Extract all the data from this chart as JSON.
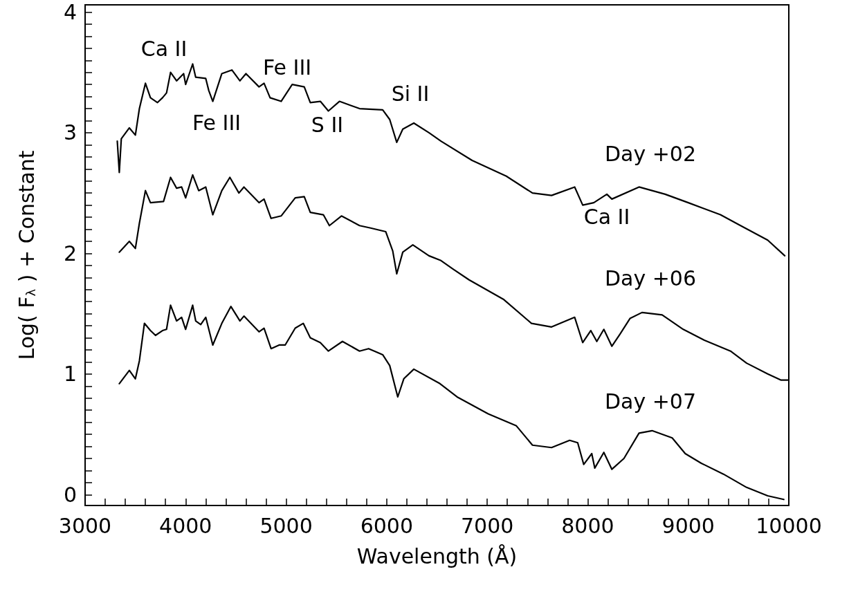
{
  "chart_data": {
    "type": "line",
    "xlabel": "Wavelength (Å)",
    "ylabel": "Log( F$_{λ}$ ) + Constant",
    "xlim": [
      3000,
      10000
    ],
    "ylim": [
      -0.09,
      4.06
    ],
    "xticks": [
      3000,
      4000,
      5000,
      6000,
      7000,
      8000,
      9000,
      10000
    ],
    "yticks": [
      0,
      1,
      2,
      3,
      4
    ],
    "line_style": "solid",
    "series": [
      {
        "color": "#000000",
        "x": [
          3320,
          3340,
          3360,
          3440,
          3500,
          3540,
          3600,
          3650,
          3720,
          3770,
          3810,
          3850,
          3910,
          3980,
          4000,
          4070,
          4100,
          4200,
          4230,
          4270,
          4360,
          4460,
          4540,
          4600,
          4730,
          4780,
          4840,
          4950,
          5060,
          5180,
          5240,
          5340,
          5420,
          5530,
          5730,
          5960,
          6030,
          6100,
          6160,
          6270,
          6420,
          6540,
          6850,
          7190,
          7450,
          7640,
          7870,
          7950,
          8060,
          8190,
          8240,
          8510,
          8770,
          9000,
          9320,
          9520,
          9790,
          9960
        ],
        "values": [
          2.93,
          2.67,
          2.95,
          3.04,
          2.98,
          3.2,
          3.41,
          3.29,
          3.25,
          3.29,
          3.33,
          3.5,
          3.43,
          3.49,
          3.4,
          3.57,
          3.46,
          3.45,
          3.35,
          3.26,
          3.49,
          3.52,
          3.43,
          3.49,
          3.38,
          3.41,
          3.29,
          3.26,
          3.4,
          3.38,
          3.25,
          3.26,
          3.18,
          3.26,
          3.2,
          3.19,
          3.11,
          2.92,
          3.03,
          3.08,
          3.0,
          2.93,
          2.77,
          2.64,
          2.5,
          2.48,
          2.55,
          2.4,
          2.42,
          2.49,
          2.45,
          2.55,
          2.49,
          2.42,
          2.32,
          2.23,
          2.11,
          1.98
        ]
      },
      {
        "color": "#000000",
        "x": [
          3340,
          3440,
          3500,
          3540,
          3600,
          3650,
          3780,
          3850,
          3910,
          3960,
          4000,
          4070,
          4130,
          4200,
          4270,
          4360,
          4440,
          4530,
          4580,
          4730,
          4780,
          4850,
          4950,
          5090,
          5180,
          5240,
          5370,
          5430,
          5550,
          5730,
          5840,
          5990,
          6060,
          6100,
          6160,
          6260,
          6420,
          6540,
          6660,
          6820,
          7160,
          7440,
          7640,
          7870,
          7950,
          8030,
          8090,
          8160,
          8240,
          8320,
          8420,
          8540,
          8740,
          8950,
          9160,
          9420,
          9580,
          9790,
          9920,
          9990
        ],
        "values": [
          2.01,
          2.1,
          2.04,
          2.25,
          2.52,
          2.42,
          2.43,
          2.63,
          2.54,
          2.55,
          2.46,
          2.65,
          2.52,
          2.55,
          2.32,
          2.52,
          2.63,
          2.5,
          2.55,
          2.42,
          2.45,
          2.29,
          2.31,
          2.46,
          2.47,
          2.34,
          2.32,
          2.23,
          2.31,
          2.23,
          2.21,
          2.18,
          2.02,
          1.83,
          2.01,
          2.07,
          1.98,
          1.94,
          1.87,
          1.78,
          1.62,
          1.42,
          1.39,
          1.47,
          1.26,
          1.36,
          1.27,
          1.37,
          1.23,
          1.33,
          1.46,
          1.51,
          1.49,
          1.37,
          1.28,
          1.19,
          1.09,
          1.0,
          0.95,
          0.95
        ]
      },
      {
        "color": "#000000",
        "x": [
          3340,
          3440,
          3500,
          3540,
          3590,
          3650,
          3700,
          3770,
          3810,
          3850,
          3910,
          3960,
          4000,
          4070,
          4100,
          4150,
          4200,
          4270,
          4360,
          4450,
          4540,
          4580,
          4730,
          4780,
          4850,
          4930,
          4990,
          5090,
          5170,
          5240,
          5340,
          5420,
          5560,
          5730,
          5820,
          5960,
          6030,
          6110,
          6170,
          6270,
          6530,
          6700,
          7010,
          7290,
          7450,
          7640,
          7820,
          7900,
          7960,
          8040,
          8070,
          8160,
          8240,
          8360,
          8510,
          8640,
          8840,
          8970,
          9130,
          9350,
          9580,
          9790,
          9950
        ],
        "values": [
          0.92,
          1.03,
          0.96,
          1.11,
          1.42,
          1.36,
          1.32,
          1.36,
          1.37,
          1.57,
          1.44,
          1.47,
          1.37,
          1.57,
          1.44,
          1.41,
          1.47,
          1.24,
          1.42,
          1.56,
          1.44,
          1.48,
          1.35,
          1.38,
          1.21,
          1.24,
          1.24,
          1.38,
          1.42,
          1.3,
          1.26,
          1.19,
          1.27,
          1.19,
          1.21,
          1.16,
          1.07,
          0.81,
          0.96,
          1.04,
          0.92,
          0.81,
          0.67,
          0.57,
          0.41,
          0.39,
          0.45,
          0.43,
          0.25,
          0.34,
          0.22,
          0.35,
          0.21,
          0.3,
          0.51,
          0.53,
          0.47,
          0.34,
          0.26,
          0.17,
          0.06,
          -0.01,
          -0.04
        ]
      }
    ],
    "annotations": [
      "Ca II",
      "Fe III",
      "Fe III",
      "S II",
      "Si II",
      "Ca II",
      "Day +02",
      "Day +06",
      "Day +07"
    ]
  }
}
